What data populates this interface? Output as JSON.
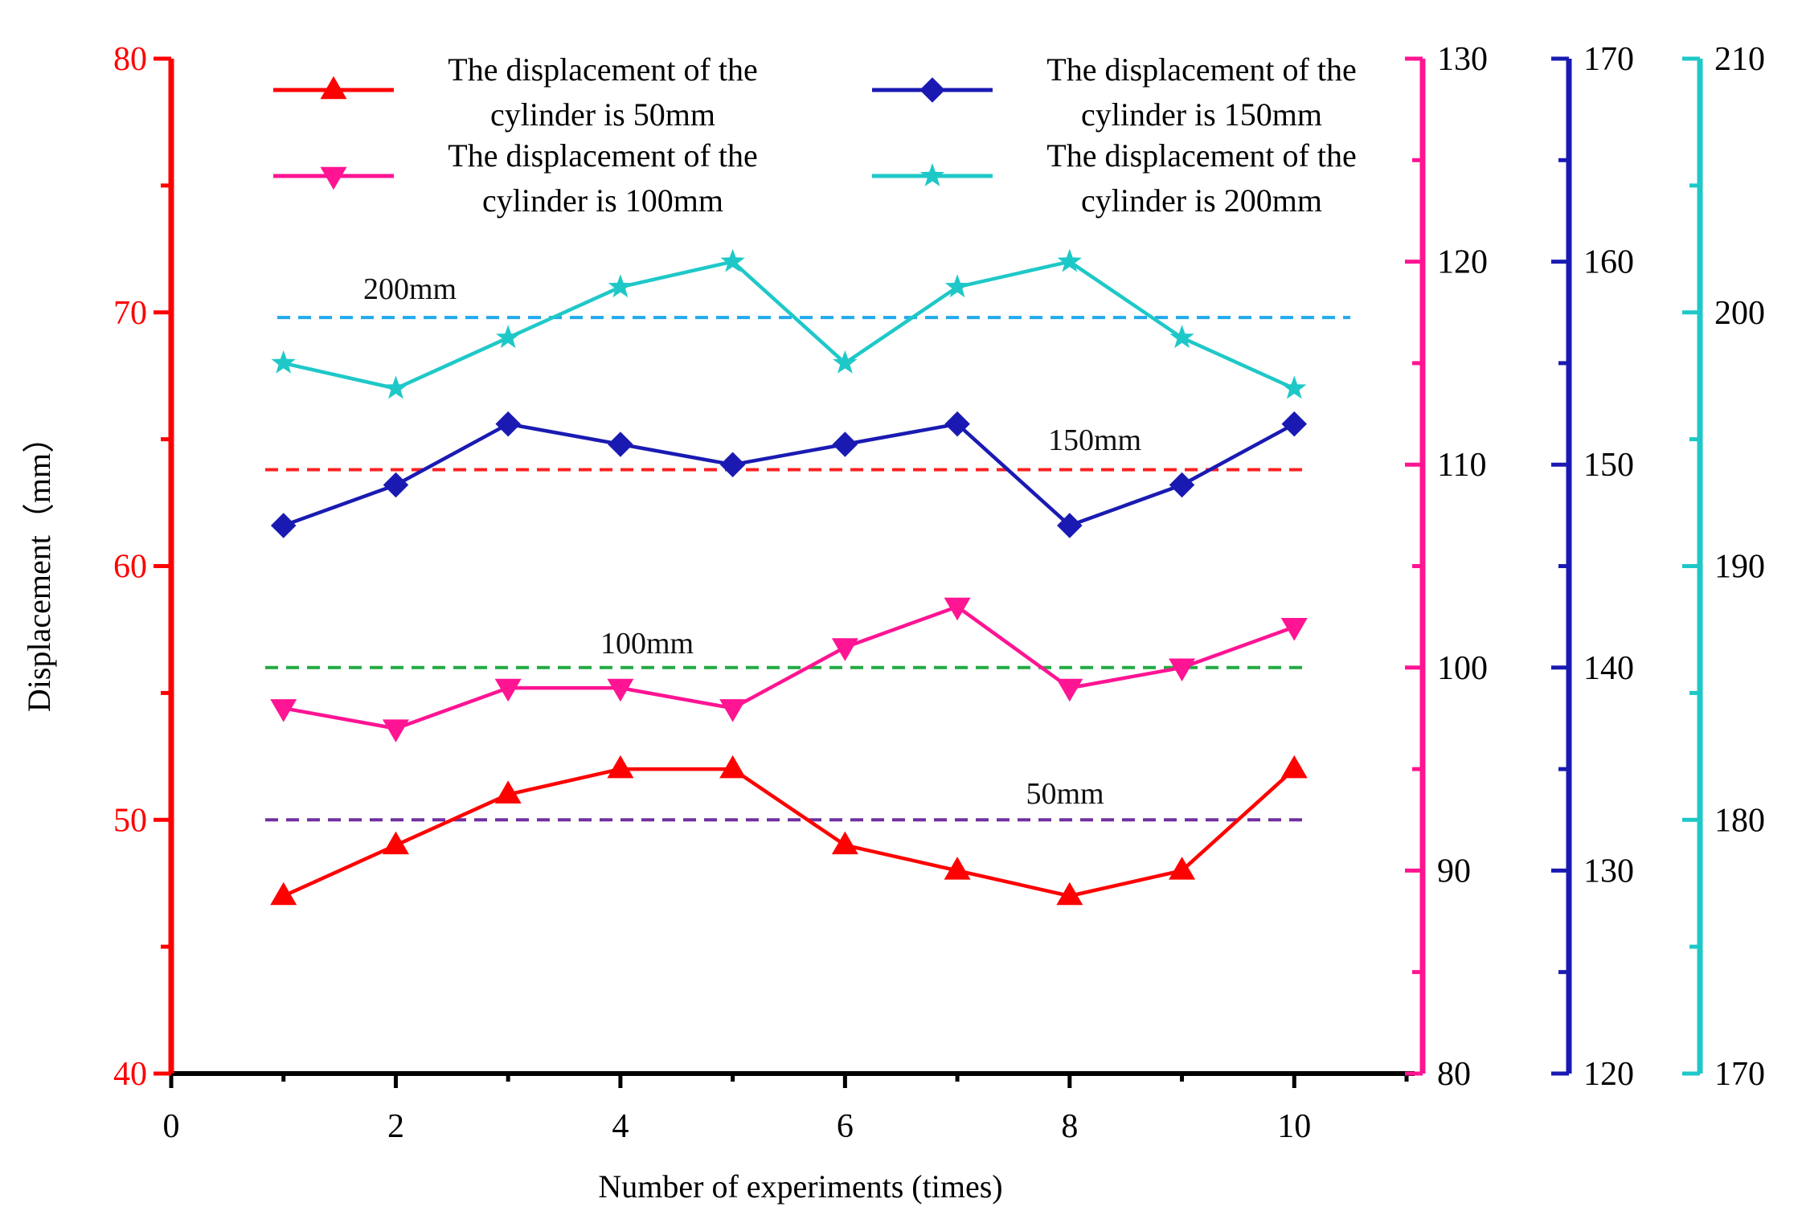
{
  "chart_data": {
    "type": "line",
    "xlabel": "Number of experiments (times)",
    "ylabel": "Displacement（mm）",
    "x": [
      1,
      2,
      3,
      4,
      5,
      6,
      7,
      8,
      9,
      10
    ],
    "xlim": [
      0,
      11
    ],
    "x_ticks": [
      0,
      2,
      4,
      6,
      8,
      10
    ],
    "axes": [
      {
        "id": "y1",
        "color": "#ff0000",
        "ylim": [
          40,
          80
        ],
        "ticks": [
          40,
          50,
          60,
          70,
          80
        ],
        "side": "left"
      },
      {
        "id": "y2",
        "color": "#ff1493",
        "ylim": [
          80,
          130
        ],
        "ticks": [
          80,
          90,
          100,
          110,
          120,
          130
        ],
        "side": "right"
      },
      {
        "id": "y3",
        "color": "#1a1ab3",
        "ylim": [
          120,
          170
        ],
        "ticks": [
          120,
          130,
          140,
          150,
          160,
          170
        ],
        "side": "right"
      },
      {
        "id": "y4",
        "color": "#1fc8c8",
        "ylim": [
          170,
          210
        ],
        "ticks": [
          170,
          180,
          190,
          200,
          210
        ],
        "side": "right"
      }
    ],
    "series": [
      {
        "name": "The displacement of the cylinder is 50mm",
        "axis": "y1",
        "marker": "triangle-up",
        "color": "#ff0000",
        "values": [
          47,
          49,
          51,
          52,
          52,
          49,
          48,
          47,
          48,
          52
        ]
      },
      {
        "name": "The displacement of the cylinder is 100mm",
        "axis": "y2",
        "marker": "triangle-down",
        "color": "#ff1493",
        "values": [
          98,
          97,
          99,
          99,
          98,
          101,
          103,
          99,
          100,
          102
        ]
      },
      {
        "name": "The displacement of the cylinder is 150mm",
        "axis": "y3",
        "marker": "diamond",
        "color": "#1a1ab3",
        "values": [
          147,
          149,
          152,
          151,
          150,
          151,
          152,
          147,
          149,
          152
        ]
      },
      {
        "name": "The displacement of the cylinder is 200mm",
        "axis": "y4",
        "marker": "star",
        "color": "#1fc8c8",
        "values": [
          198,
          197,
          199,
          201,
          202,
          198,
          201,
          202,
          199,
          197
        ]
      }
    ],
    "reference_lines": [
      {
        "label": "50mm",
        "y1_value": 50,
        "color": "#7030a0"
      },
      {
        "label": "100mm",
        "y1_value": 56,
        "color": "#22aa44"
      },
      {
        "label": "150mm",
        "y1_value": 63.8,
        "color": "#ff2020"
      },
      {
        "label": "200mm",
        "y1_value": 69.8,
        "color": "#22aaee"
      }
    ],
    "legend": {
      "position": "top",
      "columns": 2
    }
  }
}
